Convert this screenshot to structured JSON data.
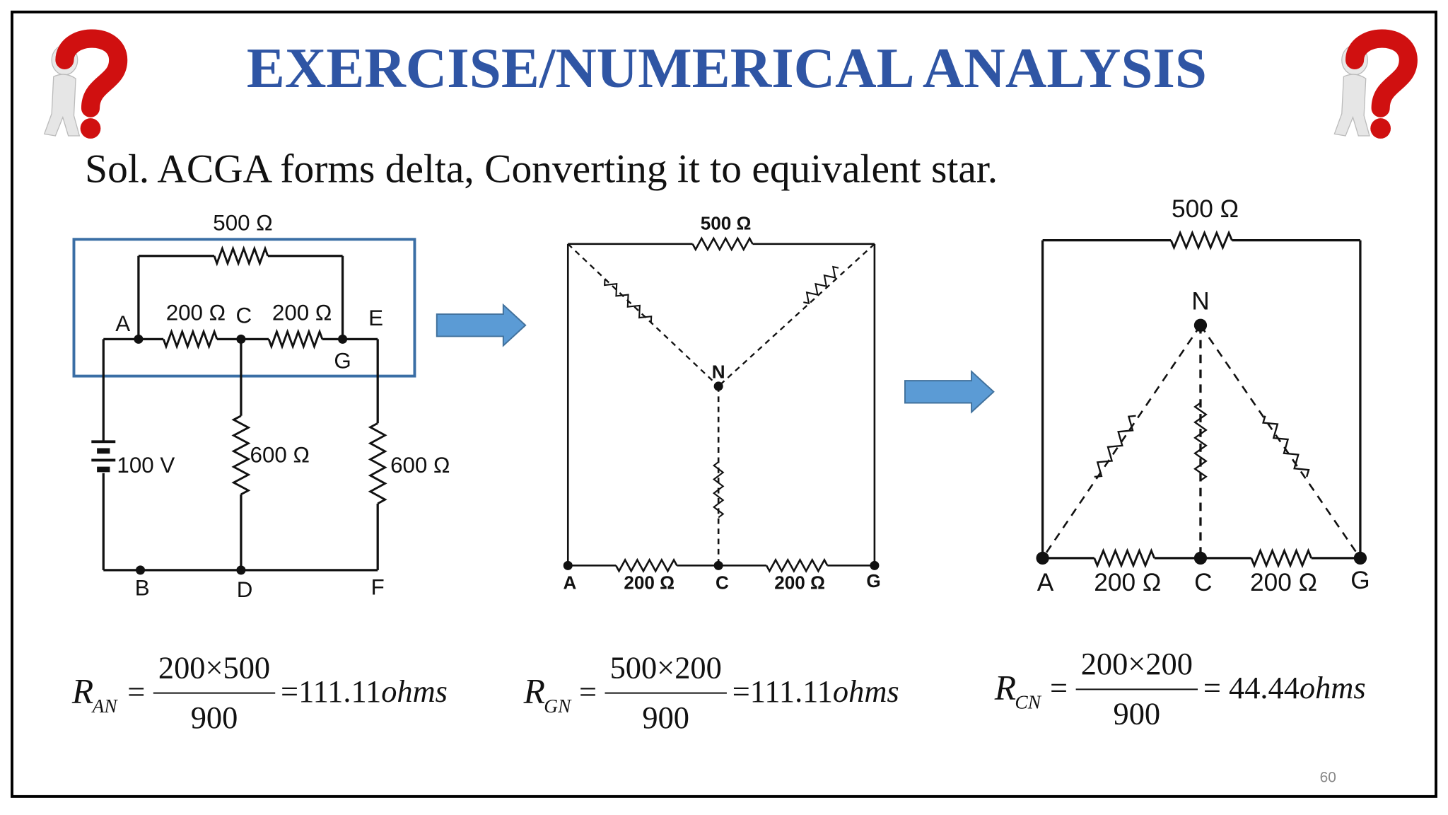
{
  "header": {
    "title": "EXERCISE/NUMERICAL ANALYSIS"
  },
  "subtitle": "Sol. ACGA forms delta, Converting it to equivalent star.",
  "diagram1": {
    "labels": [
      "500 Ω",
      "A",
      "200 Ω",
      "C",
      "200 Ω",
      "E",
      "G",
      "100 V",
      "600 Ω",
      "600 Ω",
      "B",
      "D",
      "F"
    ]
  },
  "diagram2": {
    "labels": [
      "500 Ω",
      "N",
      "A",
      "200 Ω",
      "C",
      "200 Ω",
      "G"
    ]
  },
  "diagram3": {
    "labels": [
      "500 Ω",
      "N",
      "A",
      "200 Ω",
      "C",
      "200 Ω",
      "G"
    ]
  },
  "equations": [
    {
      "symbol": "R",
      "subscript": "AN",
      "equals": "=",
      "numerator": "200×500",
      "denominator": "900",
      "result": "=111.11",
      "unit": "ohms"
    },
    {
      "symbol": "R",
      "subscript": "GN",
      "equals": "=",
      "numerator": "500×200",
      "denominator": "900",
      "result": "=111.11",
      "unit": "ohms"
    },
    {
      "symbol": "R",
      "subscript": "CN",
      "equals": "=",
      "numerator": "200×200",
      "denominator": "900",
      "result": "= 44.44",
      "unit": "ohms"
    }
  ],
  "page_number": "60"
}
